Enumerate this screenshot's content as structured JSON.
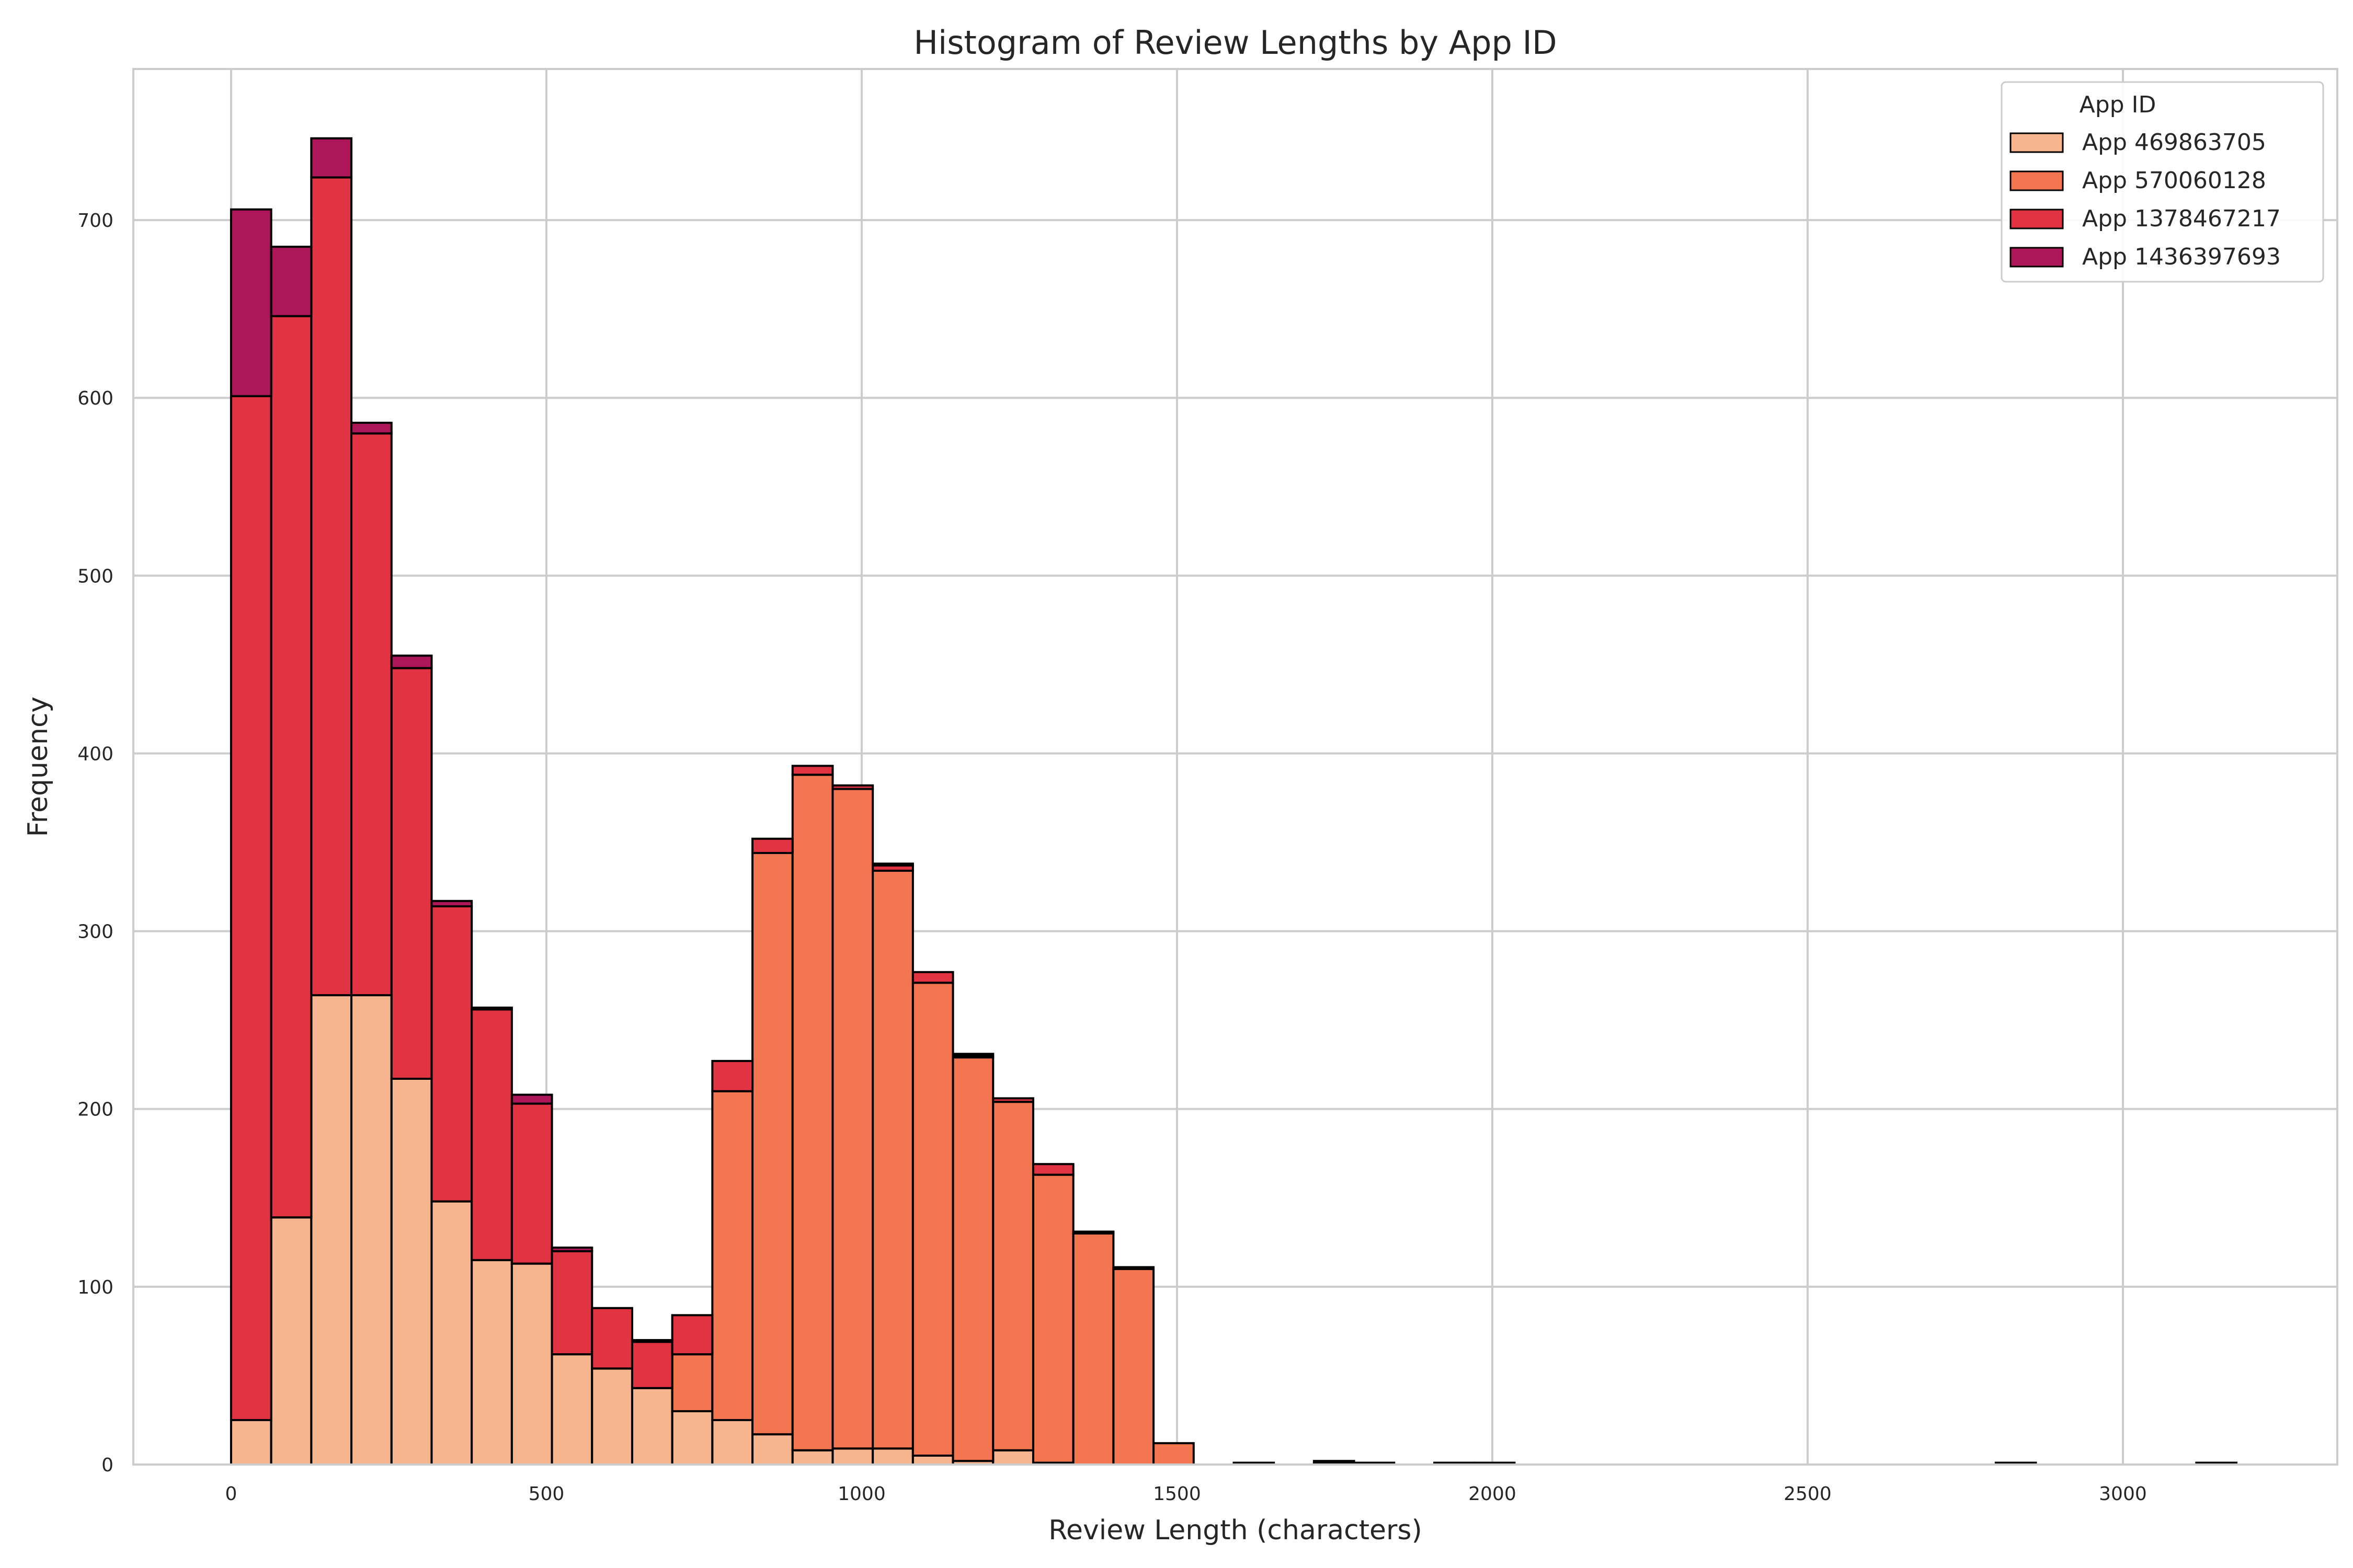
{
  "chart_data": {
    "type": "bar",
    "stacked": true,
    "title": "Histogram of Review Lengths by App ID",
    "xlabel": "Review Length (characters)",
    "ylabel": "Frequency",
    "xlim": [
      -155,
      3340
    ],
    "ylim": [
      0,
      785
    ],
    "xticks": [
      0,
      500,
      1000,
      1500,
      2000,
      2500,
      3000
    ],
    "yticks": [
      0,
      100,
      200,
      300,
      400,
      500,
      600,
      700
    ],
    "grid": true,
    "legend": {
      "title": "App ID",
      "placement": "top-right"
    },
    "bin_starts": [
      0,
      63.6,
      127.2,
      190.8,
      254.4,
      318,
      381.6,
      445.2,
      508.8,
      572.4,
      636,
      699.6,
      763.2,
      826.8,
      890.4,
      954,
      1017.6,
      1081.2,
      1144.8,
      1208.4,
      1272,
      1335.6,
      1399.2,
      1462.8,
      1590,
      1717.2,
      1780.8,
      1908,
      1971.6,
      2798.4,
      3116.4
    ],
    "bin_width": 63.6,
    "series": [
      {
        "name": "App 469863705",
        "color": "#f6b48f",
        "values": [
          25,
          139,
          264,
          264,
          217,
          148,
          115,
          113,
          62,
          54,
          43,
          30,
          25,
          17,
          8,
          9,
          9,
          5,
          2,
          8,
          1,
          0,
          0,
          0,
          0,
          0,
          0,
          0,
          0,
          0,
          0
        ]
      },
      {
        "name": "App 570060128",
        "color": "#f37651",
        "values": [
          0,
          0,
          0,
          0,
          0,
          0,
          0,
          0,
          0,
          0,
          0,
          32,
          185,
          327,
          380,
          371,
          325,
          266,
          227,
          196,
          162,
          130,
          110,
          12,
          1,
          1,
          1,
          1,
          1,
          1,
          1
        ]
      },
      {
        "name": "App 1378467217",
        "color": "#e13342",
        "values": [
          576,
          507,
          460,
          316,
          231,
          166,
          141,
          90,
          58,
          34,
          26,
          22,
          17,
          8,
          5,
          2,
          3,
          6,
          1,
          2,
          6,
          1,
          1,
          0,
          0,
          1,
          0,
          0,
          0,
          0,
          0
        ]
      },
      {
        "name": "App 1436397693",
        "color": "#ad1759",
        "values": [
          105,
          39,
          22,
          6,
          7,
          3,
          1,
          5,
          2,
          0,
          1,
          0,
          0,
          0,
          0,
          0,
          1,
          0,
          1,
          0,
          0,
          0,
          0,
          0,
          0,
          0,
          0,
          0,
          0,
          0,
          0
        ]
      }
    ]
  }
}
